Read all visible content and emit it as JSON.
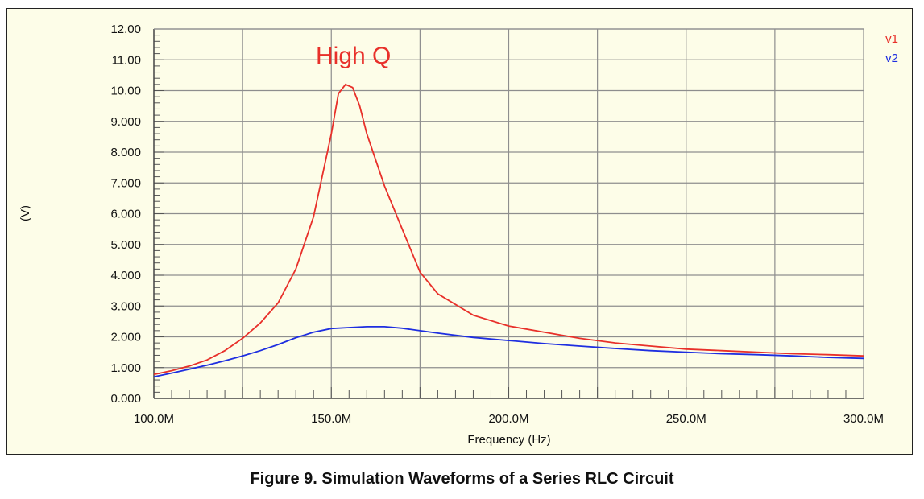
{
  "caption": "Figure 9. Simulation Waveforms of a Series RLC Circuit",
  "chart_data": {
    "type": "line",
    "title": "",
    "xlabel": "Frequency (Hz)",
    "ylabel": "(V)",
    "xlim": [
      100,
      300
    ],
    "ylim": [
      0,
      12
    ],
    "x_unit": "MHz",
    "x_ticks": [
      100,
      150,
      200,
      250,
      300
    ],
    "x_tick_labels": [
      "100.0M",
      "150.0M",
      "200.0M",
      "250.0M",
      "300.0M"
    ],
    "y_ticks": [
      0,
      1,
      2,
      3,
      4,
      5,
      6,
      7,
      8,
      9,
      10,
      11,
      12
    ],
    "y_tick_labels": [
      "0.000",
      "1.000",
      "2.000",
      "3.000",
      "4.000",
      "5.000",
      "6.000",
      "7.000",
      "8.000",
      "9.000",
      "10.00",
      "11.00",
      "12.00"
    ],
    "grid": true,
    "legend_position": "top-right",
    "annotation": {
      "text": "High Q",
      "color": "#e8302a"
    },
    "series": [
      {
        "name": "v1",
        "color": "#e8302a",
        "x": [
          100,
          105,
          110,
          115,
          120,
          125,
          130,
          135,
          140,
          145,
          150,
          152,
          154,
          156,
          158,
          160,
          165,
          170,
          175,
          180,
          190,
          200,
          210,
          220,
          230,
          240,
          250,
          260,
          270,
          280,
          290,
          300
        ],
        "y": [
          0.78,
          0.9,
          1.05,
          1.25,
          1.55,
          1.95,
          2.45,
          3.1,
          4.2,
          5.9,
          8.6,
          9.9,
          10.2,
          10.1,
          9.5,
          8.6,
          6.9,
          5.5,
          4.1,
          3.4,
          2.7,
          2.35,
          2.15,
          1.95,
          1.8,
          1.7,
          1.6,
          1.55,
          1.5,
          1.45,
          1.42,
          1.38
        ]
      },
      {
        "name": "v2",
        "color": "#1e2ee0",
        "x": [
          100,
          105,
          110,
          115,
          120,
          125,
          130,
          135,
          140,
          145,
          150,
          155,
          160,
          165,
          170,
          175,
          180,
          190,
          200,
          210,
          220,
          230,
          240,
          250,
          260,
          270,
          280,
          290,
          300
        ],
        "y": [
          0.7,
          0.82,
          0.95,
          1.08,
          1.22,
          1.38,
          1.55,
          1.75,
          1.97,
          2.15,
          2.27,
          2.3,
          2.33,
          2.33,
          2.28,
          2.2,
          2.12,
          1.98,
          1.88,
          1.78,
          1.7,
          1.62,
          1.55,
          1.5,
          1.45,
          1.42,
          1.38,
          1.33,
          1.3
        ]
      }
    ]
  }
}
